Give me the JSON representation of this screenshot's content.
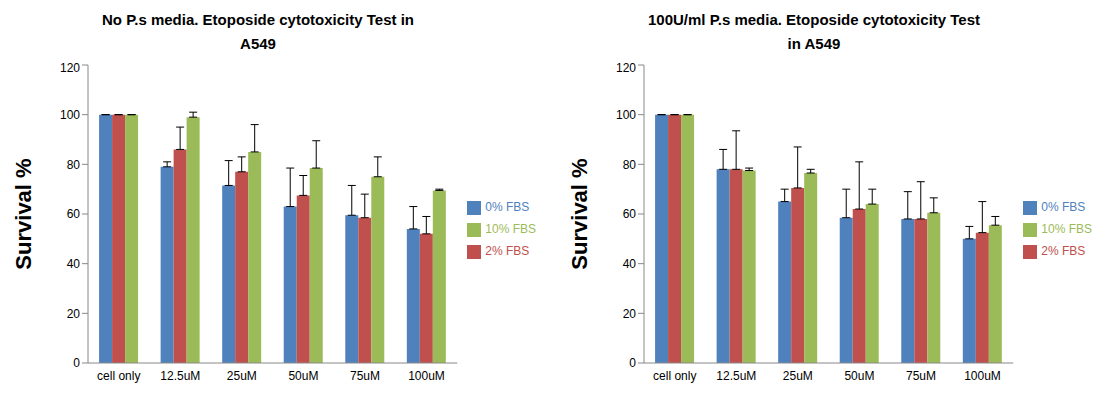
{
  "chart_data": [
    {
      "type": "bar",
      "title": "No P.s media. Etoposide cytotoxicity Test in A549",
      "y_label": "Survival %",
      "categories": [
        "cell only",
        "12.5uM",
        "25uM",
        "50uM",
        "75uM",
        "100uM"
      ],
      "ylim": [
        0,
        120
      ],
      "yticks": [
        0,
        20,
        40,
        60,
        80,
        100,
        120
      ],
      "grid": false,
      "legend": "right",
      "series": [
        {
          "name": "0% FBS",
          "color": "#4F81BD",
          "values": [
            100,
            79,
            71.5,
            63,
            59.5,
            54
          ],
          "errors": [
            0,
            2,
            10,
            15.5,
            12,
            9
          ]
        },
        {
          "name": "2% FBS",
          "color": "#C0504D",
          "values": [
            100,
            86,
            77,
            67.5,
            58.5,
            52
          ],
          "errors": [
            0,
            9,
            6,
            8,
            9.5,
            7
          ]
        },
        {
          "name": "10% FBS",
          "color": "#9BBB59",
          "values": [
            100,
            99,
            85,
            78.5,
            75,
            69.5
          ],
          "errors": [
            0,
            2,
            11,
            11,
            8,
            0.5
          ]
        }
      ]
    },
    {
      "type": "bar",
      "title": "100U/ml P.s media. Etoposide cytotoxicity Test in A549",
      "y_label": "Survival %",
      "categories": [
        "cell only",
        "12.5uM",
        "25uM",
        "50uM",
        "75uM",
        "100uM"
      ],
      "ylim": [
        0,
        120
      ],
      "yticks": [
        0,
        20,
        40,
        60,
        80,
        100,
        120
      ],
      "grid": false,
      "legend": "right",
      "series": [
        {
          "name": "0% FBS",
          "color": "#4F81BD",
          "values": [
            100,
            78,
            65,
            58.5,
            58,
            50
          ],
          "errors": [
            0,
            8,
            5,
            11.5,
            11,
            5
          ]
        },
        {
          "name": "2% FBS",
          "color": "#C0504D",
          "values": [
            100,
            78,
            70.5,
            62,
            58,
            52.5
          ],
          "errors": [
            0,
            15.5,
            16.5,
            19,
            15,
            12.5
          ]
        },
        {
          "name": "10% FBS",
          "color": "#9BBB59",
          "values": [
            100,
            77.5,
            76.5,
            64,
            60.5,
            55.5
          ],
          "errors": [
            0,
            1,
            1.5,
            6,
            6,
            3.5
          ]
        }
      ]
    }
  ]
}
